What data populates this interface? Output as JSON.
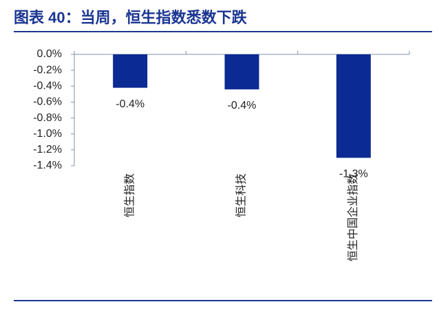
{
  "chart_data": {
    "type": "bar",
    "title": "图表 40：当周，恒生指数悉数下跌",
    "categories": [
      "恒生指数",
      "恒生科技",
      "恒生中国企业指数"
    ],
    "values": [
      -0.42,
      -0.44,
      -1.3
    ],
    "value_labels": [
      "-0.4%",
      "-0.4%",
      "-1.3%"
    ],
    "color": "#0b2a93",
    "ylim": [
      0,
      -1.4
    ],
    "yticks": [
      {
        "value": 0,
        "label": "0.0%"
      },
      {
        "value": -0.2,
        "label": "-0.2%"
      },
      {
        "value": -0.4,
        "label": "-0.4%"
      },
      {
        "value": -0.6,
        "label": "-0.6%"
      },
      {
        "value": -0.8,
        "label": "-0.8%"
      },
      {
        "value": -1.0,
        "label": "-1.0%"
      },
      {
        "value": -1.2,
        "label": "-1.2%"
      },
      {
        "value": -1.4,
        "label": "-1.4%"
      }
    ],
    "grid": false
  }
}
